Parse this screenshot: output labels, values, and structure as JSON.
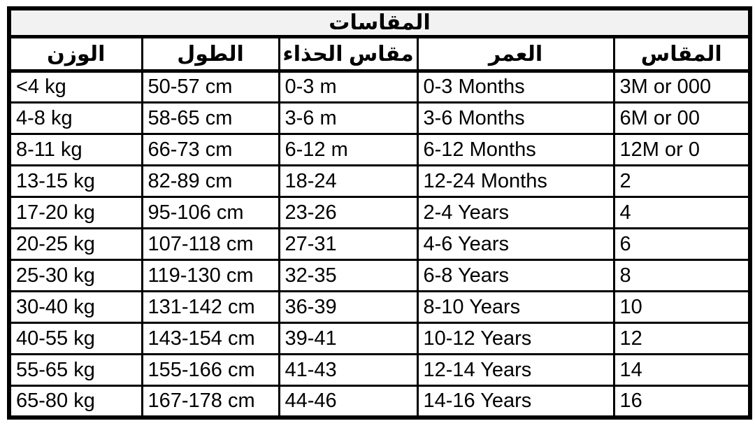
{
  "table": {
    "title": "المقاسات",
    "headers": [
      {
        "key": "weight",
        "label": "الوزن"
      },
      {
        "key": "height",
        "label": "الطول"
      },
      {
        "key": "shoe",
        "label": "مقاس الحذاء"
      },
      {
        "key": "age",
        "label": "العمر"
      },
      {
        "key": "size",
        "label": "المقاس"
      }
    ],
    "rows": [
      {
        "weight": "<4 kg",
        "height": "50-57 cm",
        "shoe": "0-3 m",
        "age": "0-3 Months",
        "size": "3M or 000"
      },
      {
        "weight": "4-8 kg",
        "height": "58-65 cm",
        "shoe": "3-6 m",
        "age": "3-6 Months",
        "size": "6M or 00"
      },
      {
        "weight": "8-11 kg",
        "height": "66-73 cm",
        "shoe": "6-12 m",
        "age": "6-12 Months",
        "size": "12M or 0"
      },
      {
        "weight": "13-15 kg",
        "height": "82-89 cm",
        "shoe": "18-24",
        "age": "12-24 Months",
        "size": "2"
      },
      {
        "weight": "17-20 kg",
        "height": "95-106 cm",
        "shoe": "23-26",
        "age": "2-4 Years",
        "size": "4"
      },
      {
        "weight": "20-25 kg",
        "height": "107-118 cm",
        "shoe": "27-31",
        "age": "4-6 Years",
        "size": "6"
      },
      {
        "weight": "25-30 kg",
        "height": "119-130 cm",
        "shoe": "32-35",
        "age": "6-8 Years",
        "size": "8"
      },
      {
        "weight": "30-40 kg",
        "height": "131-142 cm",
        "shoe": "36-39",
        "age": "8-10 Years",
        "size": "10"
      },
      {
        "weight": "40-55 kg",
        "height": "143-154 cm",
        "shoe": "39-41",
        "age": "10-12 Years",
        "size": "12"
      },
      {
        "weight": "55-65 kg",
        "height": "155-166 cm",
        "shoe": "41-43",
        "age": "12-14 Years",
        "size": "14"
      },
      {
        "weight": "65-80 kg",
        "height": "167-178 cm",
        "shoe": "44-46",
        "age": "14-16 Years",
        "size": "16"
      }
    ]
  },
  "colors": {
    "border": "#000000",
    "title_background": "#f2f2f2",
    "cell_background": "#ffffff",
    "text": "#000000"
  }
}
